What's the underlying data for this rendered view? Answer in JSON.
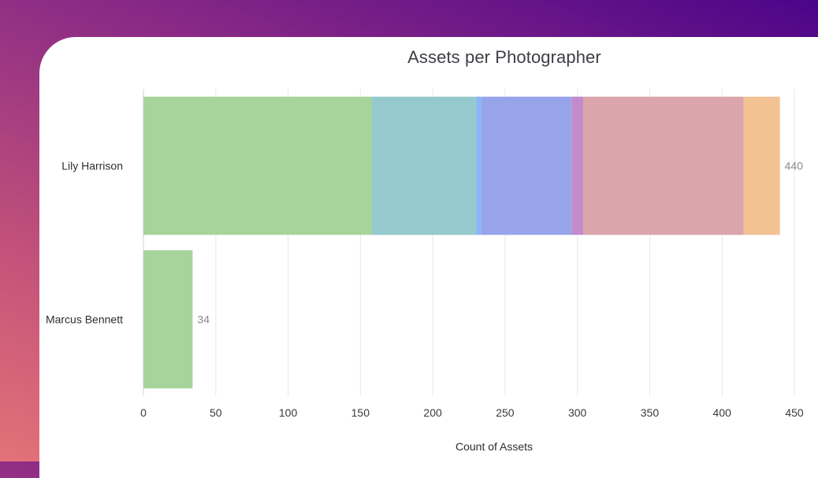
{
  "chart_data": {
    "type": "bar",
    "orientation": "horizontal",
    "stacked": true,
    "title": "Assets per Photographer",
    "xlabel": "Count of Assets",
    "ylabel": "",
    "xlim": [
      0,
      450
    ],
    "x_ticks": [
      0,
      50,
      100,
      150,
      200,
      250,
      300,
      350,
      400,
      450
    ],
    "grid": "vertical",
    "categories": [
      "Lily Harrison",
      "Marcus Bennett"
    ],
    "totals": [
      440,
      34
    ],
    "series": [
      {
        "color": "#a6d49b",
        "values": [
          158,
          34
        ]
      },
      {
        "color": "#95c9cd",
        "values": [
          72,
          0
        ]
      },
      {
        "color": "#8db5f5",
        "values": [
          4,
          0
        ]
      },
      {
        "color": "#97a4ea",
        "values": [
          62,
          0
        ]
      },
      {
        "color": "#c28bcc",
        "values": [
          8,
          0
        ]
      },
      {
        "color": "#dba6ab",
        "values": [
          111,
          0
        ]
      },
      {
        "color": "#f2c293",
        "values": [
          25,
          0
        ]
      }
    ]
  }
}
